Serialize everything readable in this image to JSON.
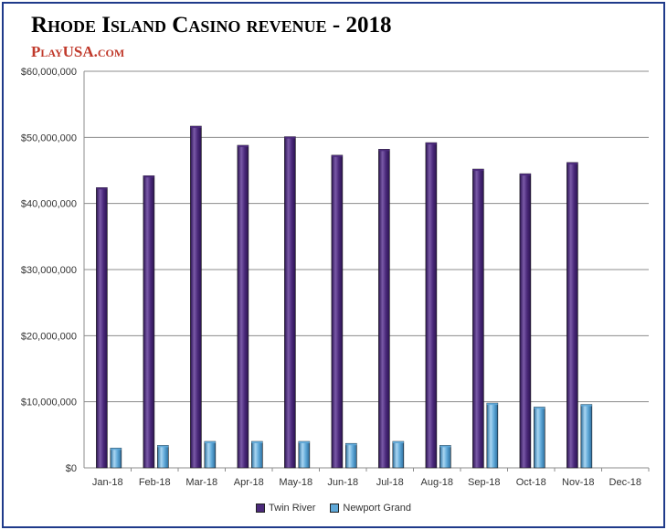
{
  "title": "Rhode Island Casino revenue - 2018",
  "brand": "PlayUSA.com",
  "chart_data": {
    "type": "bar",
    "title": "Rhode Island Casino revenue - 2018",
    "xlabel": "",
    "ylabel": "",
    "ylim": [
      0,
      60000000
    ],
    "yticks": [
      0,
      10000000,
      20000000,
      30000000,
      40000000,
      50000000,
      60000000
    ],
    "ytick_labels": [
      "$0",
      "$10,000,000",
      "$20,000,000",
      "$30,000,000",
      "$40,000,000",
      "$50,000,000",
      "$60,000,000"
    ],
    "grid": true,
    "legend": "bottom",
    "categories": [
      "Jan-18",
      "Feb-18",
      "Mar-18",
      "Apr-18",
      "May-18",
      "Jun-18",
      "Jul-18",
      "Aug-18",
      "Sep-18",
      "Oct-18",
      "Nov-18",
      "Dec-18"
    ],
    "series": [
      {
        "name": "Twin River",
        "color": "#4b2a7b",
        "values": [
          42400000,
          44200000,
          51700000,
          48800000,
          50100000,
          47300000,
          48200000,
          49200000,
          45200000,
          44500000,
          46200000,
          null
        ]
      },
      {
        "name": "Newport Grand",
        "color": "#5fa8d8",
        "values": [
          3000000,
          3400000,
          4000000,
          4000000,
          4000000,
          3700000,
          4000000,
          3400000,
          9800000,
          9200000,
          9600000,
          null
        ]
      }
    ]
  }
}
